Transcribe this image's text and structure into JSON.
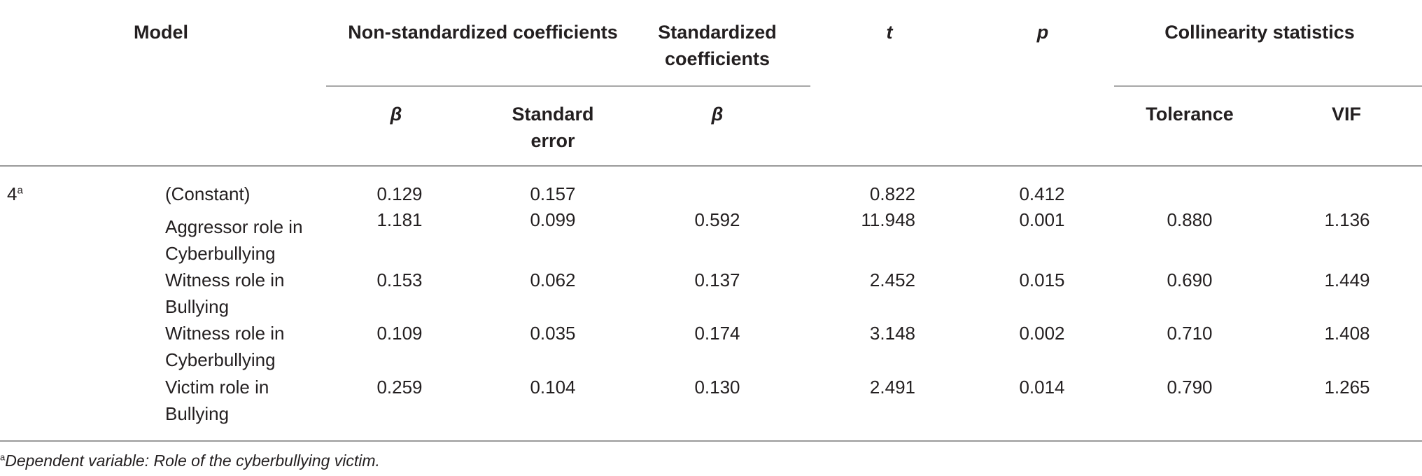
{
  "table": {
    "headers": {
      "model": "Model",
      "nonstd": "Non-standardized coefficients",
      "std_line1": "Standardized",
      "std_line2": "coefficients",
      "t": "t",
      "p": "p",
      "collin": "Collinearity statistics",
      "beta": "β",
      "se_line1": "Standard",
      "se_line2": "error",
      "std_beta": "β",
      "tolerance": "Tolerance",
      "vif": "VIF"
    },
    "model_number": "4",
    "model_sup": "a",
    "rows": [
      {
        "label_line1": "(Constant)",
        "label_line2": "",
        "beta": "0.129",
        "se": "0.157",
        "std_beta": "",
        "t": "0.822",
        "p": "0.412",
        "tolerance": "",
        "vif": ""
      },
      {
        "label_line1": "Aggressor role in",
        "label_line2": "Cyberbullying",
        "beta": "1.181",
        "se": "0.099",
        "std_beta": "0.592",
        "t": "11.948",
        "p": "0.001",
        "tolerance": "0.880",
        "vif": "1.136"
      },
      {
        "label_line1": "Witness role in",
        "label_line2": "Bullying",
        "beta": "0.153",
        "se": "0.062",
        "std_beta": "0.137",
        "t": "2.452",
        "p": "0.015",
        "tolerance": "0.690",
        "vif": "1.449"
      },
      {
        "label_line1": "Witness role in",
        "label_line2": "Cyberbullying",
        "beta": "0.109",
        "se": "0.035",
        "std_beta": "0.174",
        "t": "3.148",
        "p": "0.002",
        "tolerance": "0.710",
        "vif": "1.408"
      },
      {
        "label_line1": "Victim role in",
        "label_line2": "Bullying",
        "beta": "0.259",
        "se": "0.104",
        "std_beta": "0.130",
        "t": "2.491",
        "p": "0.014",
        "tolerance": "0.790",
        "vif": "1.265"
      }
    ]
  },
  "footnote": {
    "marker": "a",
    "text": "Dependent variable: Role of the cyberbullying victim."
  }
}
